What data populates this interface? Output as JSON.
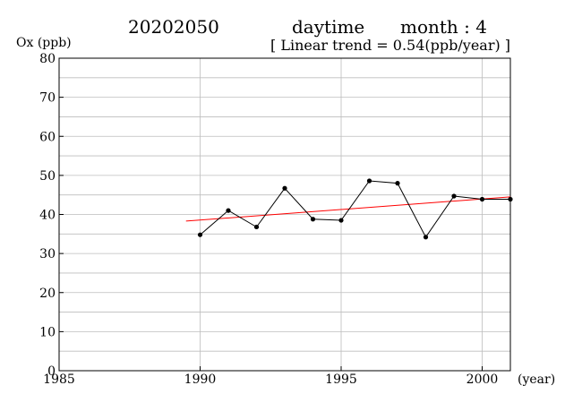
{
  "header": {
    "station": "20202050",
    "period": "daytime",
    "month": "month : 4",
    "trend": "[ Linear trend = 0.54(ppb/year) ]"
  },
  "chart_data": {
    "type": "line",
    "title": "",
    "ylabel": "Ox (ppb)",
    "xlabel": "(year)",
    "xlim": [
      1985,
      2001
    ],
    "ylim": [
      0,
      80
    ],
    "x_ticks": [
      1985,
      1990,
      1995,
      2000
    ],
    "y_ticks": [
      0,
      10,
      20,
      30,
      40,
      50,
      60,
      70,
      80
    ],
    "grid": true,
    "series": [
      {
        "x": [
          1990,
          1991,
          1992,
          1993,
          1994,
          1995,
          1996,
          1997,
          1998,
          1999,
          2000,
          2001
        ],
        "values": [
          34.8,
          41.0,
          36.8,
          46.7,
          38.8,
          38.5,
          48.6,
          48.0,
          34.2,
          44.7,
          43.9,
          43.9
        ],
        "color": "#000000"
      }
    ],
    "trend_line": {
      "x": [
        1989.5,
        2001
      ],
      "values": [
        38.3,
        44.5
      ],
      "color": "#ff0000"
    }
  }
}
